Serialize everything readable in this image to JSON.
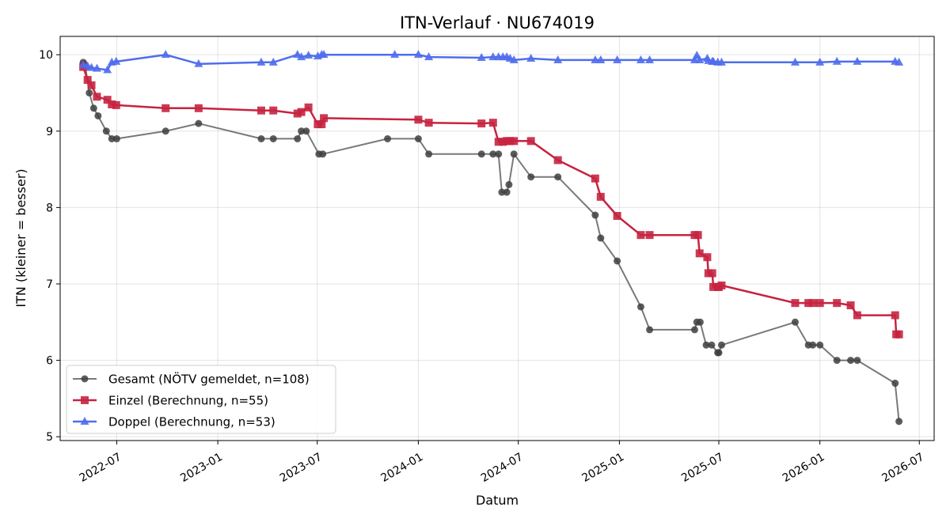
{
  "chart_data": {
    "type": "line",
    "title": "ITN-Verlauf · NU674019",
    "xlabel": "Datum",
    "ylabel": "ITN  (kleiner = besser)",
    "x_type": "date",
    "xlim": [
      "2022-03-20",
      "2026-07-28"
    ],
    "ylim": [
      4.95,
      10.24
    ],
    "x_ticks": [
      "2022-07",
      "2023-01",
      "2023-07",
      "2024-01",
      "2024-07",
      "2025-01",
      "2025-07",
      "2026-01",
      "2026-07"
    ],
    "y_ticks": [
      5,
      6,
      7,
      8,
      9,
      10
    ],
    "grid": true,
    "legend_position": "lower-left",
    "series": [
      {
        "name": "Gesamt (NÖTV gemeldet, n=108)",
        "color": "#404040",
        "marker": "circle",
        "points": [
          [
            "2022-05-01",
            9.9
          ],
          [
            "2022-05-02",
            9.88
          ],
          [
            "2022-05-03",
            9.86
          ],
          [
            "2022-05-05",
            9.84
          ],
          [
            "2022-05-12",
            9.5
          ],
          [
            "2022-05-20",
            9.3
          ],
          [
            "2022-05-28",
            9.2
          ],
          [
            "2022-06-12",
            9.0
          ],
          [
            "2022-06-22",
            8.9
          ],
          [
            "2022-07-01",
            8.9
          ],
          [
            "2022-09-28",
            9.0
          ],
          [
            "2022-11-27",
            9.1
          ],
          [
            "2023-03-21",
            8.9
          ],
          [
            "2023-04-12",
            8.9
          ],
          [
            "2023-05-26",
            8.9
          ],
          [
            "2023-06-02",
            9.0
          ],
          [
            "2023-06-11",
            9.0
          ],
          [
            "2023-07-04",
            8.7
          ],
          [
            "2023-07-11",
            8.7
          ],
          [
            "2023-11-06",
            8.9
          ],
          [
            "2024-01-01",
            8.9
          ],
          [
            "2024-01-20",
            8.7
          ],
          [
            "2024-04-25",
            8.7
          ],
          [
            "2024-05-16",
            8.7
          ],
          [
            "2024-05-26",
            8.7
          ],
          [
            "2024-06-01",
            8.2
          ],
          [
            "2024-06-10",
            8.2
          ],
          [
            "2024-06-14",
            8.3
          ],
          [
            "2024-06-23",
            8.7
          ],
          [
            "2024-07-24",
            8.4
          ],
          [
            "2024-09-11",
            8.4
          ],
          [
            "2024-11-18",
            7.9
          ],
          [
            "2024-11-28",
            7.6
          ],
          [
            "2024-12-28",
            7.3
          ],
          [
            "2025-02-09",
            6.7
          ],
          [
            "2025-02-25",
            6.4
          ],
          [
            "2025-05-18",
            6.4
          ],
          [
            "2025-05-22",
            6.5
          ],
          [
            "2025-05-28",
            6.5
          ],
          [
            "2025-06-08",
            6.2
          ],
          [
            "2025-06-18",
            6.2
          ],
          [
            "2025-06-29",
            6.1
          ],
          [
            "2025-07-01",
            6.1
          ],
          [
            "2025-07-06",
            6.2
          ],
          [
            "2025-11-17",
            6.5
          ],
          [
            "2025-12-11",
            6.2
          ],
          [
            "2025-12-19",
            6.2
          ],
          [
            "2026-01-01",
            6.2
          ],
          [
            "2026-02-01",
            6.0
          ],
          [
            "2026-02-26",
            6.0
          ],
          [
            "2026-03-10",
            6.0
          ],
          [
            "2026-05-18",
            5.7
          ],
          [
            "2026-05-25",
            5.2
          ]
        ]
      },
      {
        "name": "Einzel (Berechnung, n=55)",
        "color": "#c62340",
        "marker": "square",
        "points": [
          [
            "2022-05-01",
            9.84
          ],
          [
            "2022-05-09",
            9.67
          ],
          [
            "2022-05-16",
            9.6
          ],
          [
            "2022-05-26",
            9.45
          ],
          [
            "2022-06-14",
            9.41
          ],
          [
            "2022-06-22",
            9.35
          ],
          [
            "2022-06-30",
            9.34
          ],
          [
            "2022-09-28",
            9.3
          ],
          [
            "2022-11-27",
            9.3
          ],
          [
            "2023-03-21",
            9.27
          ],
          [
            "2023-04-12",
            9.27
          ],
          [
            "2023-05-26",
            9.23
          ],
          [
            "2023-06-02",
            9.25
          ],
          [
            "2023-06-15",
            9.31
          ],
          [
            "2023-07-02",
            9.09
          ],
          [
            "2023-07-09",
            9.09
          ],
          [
            "2023-07-13",
            9.17
          ],
          [
            "2024-01-01",
            9.15
          ],
          [
            "2024-01-20",
            9.11
          ],
          [
            "2024-04-25",
            9.1
          ],
          [
            "2024-05-16",
            9.11
          ],
          [
            "2024-05-26",
            8.86
          ],
          [
            "2024-06-03",
            8.86
          ],
          [
            "2024-06-10",
            8.87
          ],
          [
            "2024-06-16",
            8.87
          ],
          [
            "2024-06-23",
            8.87
          ],
          [
            "2024-07-24",
            8.87
          ],
          [
            "2024-09-11",
            8.62
          ],
          [
            "2024-11-18",
            8.38
          ],
          [
            "2024-11-28",
            8.14
          ],
          [
            "2024-12-28",
            7.89
          ],
          [
            "2025-02-09",
            7.64
          ],
          [
            "2025-02-25",
            7.64
          ],
          [
            "2025-05-18",
            7.64
          ],
          [
            "2025-05-24",
            7.64
          ],
          [
            "2025-05-27",
            7.4
          ],
          [
            "2025-06-10",
            7.35
          ],
          [
            "2025-06-12",
            7.14
          ],
          [
            "2025-06-19",
            7.14
          ],
          [
            "2025-06-21",
            6.96
          ],
          [
            "2025-06-29",
            6.96
          ],
          [
            "2025-07-01",
            6.96
          ],
          [
            "2025-07-06",
            6.98
          ],
          [
            "2025-11-17",
            6.75
          ],
          [
            "2025-12-11",
            6.75
          ],
          [
            "2025-12-19",
            6.75
          ],
          [
            "2026-01-01",
            6.75
          ],
          [
            "2026-02-01",
            6.75
          ],
          [
            "2026-02-26",
            6.72
          ],
          [
            "2026-03-10",
            6.59
          ],
          [
            "2026-05-18",
            6.59
          ],
          [
            "2026-05-20",
            6.34
          ],
          [
            "2026-05-25",
            6.34
          ]
        ]
      },
      {
        "name": "Doppel (Berechnung, n=53)",
        "color": "#4f6ded",
        "marker": "triangle",
        "points": [
          [
            "2022-05-01",
            9.87
          ],
          [
            "2022-05-09",
            9.85
          ],
          [
            "2022-05-16",
            9.83
          ],
          [
            "2022-05-26",
            9.82
          ],
          [
            "2022-06-14",
            9.8
          ],
          [
            "2022-06-22",
            9.9
          ],
          [
            "2022-06-30",
            9.91
          ],
          [
            "2022-09-28",
            10.0
          ],
          [
            "2022-11-27",
            9.88
          ],
          [
            "2023-03-21",
            9.9
          ],
          [
            "2023-04-12",
            9.9
          ],
          [
            "2023-05-26",
            10.0
          ],
          [
            "2023-06-02",
            9.97
          ],
          [
            "2023-06-15",
            9.99
          ],
          [
            "2023-07-02",
            9.98
          ],
          [
            "2023-07-09",
            10.0
          ],
          [
            "2023-07-13",
            10.0
          ],
          [
            "2023-11-19",
            10.0
          ],
          [
            "2024-01-01",
            10.0
          ],
          [
            "2024-01-20",
            9.97
          ],
          [
            "2024-04-25",
            9.96
          ],
          [
            "2024-05-16",
            9.97
          ],
          [
            "2024-05-26",
            9.97
          ],
          [
            "2024-06-03",
            9.97
          ],
          [
            "2024-06-10",
            9.97
          ],
          [
            "2024-06-16",
            9.95
          ],
          [
            "2024-06-23",
            9.93
          ],
          [
            "2024-07-24",
            9.95
          ],
          [
            "2024-09-11",
            9.93
          ],
          [
            "2024-11-18",
            9.93
          ],
          [
            "2024-11-28",
            9.93
          ],
          [
            "2024-12-28",
            9.93
          ],
          [
            "2025-02-09",
            9.93
          ],
          [
            "2025-02-25",
            9.93
          ],
          [
            "2025-05-18",
            9.93
          ],
          [
            "2025-05-22",
            9.99
          ],
          [
            "2025-05-27",
            9.93
          ],
          [
            "2025-06-10",
            9.95
          ],
          [
            "2025-06-12",
            9.92
          ],
          [
            "2025-06-19",
            9.91
          ],
          [
            "2025-06-21",
            9.91
          ],
          [
            "2025-06-29",
            9.9
          ],
          [
            "2025-07-06",
            9.9
          ],
          [
            "2025-11-17",
            9.9
          ],
          [
            "2026-01-01",
            9.9
          ],
          [
            "2026-02-01",
            9.91
          ],
          [
            "2026-03-10",
            9.91
          ],
          [
            "2026-05-18",
            9.91
          ],
          [
            "2026-05-25",
            9.9
          ]
        ]
      }
    ]
  }
}
